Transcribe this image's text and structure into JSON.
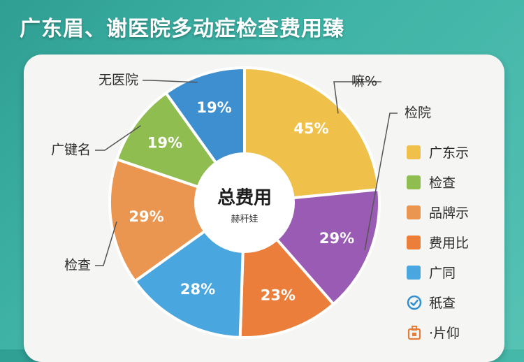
{
  "title": "广东眉、谢医院多动症检查费用臻",
  "chart_data": {
    "type": "pie",
    "slices": [
      {
        "value": 45,
        "label": "45%",
        "color": "#efc04a",
        "callout": "嘛%"
      },
      {
        "value": 29,
        "label": "29%",
        "color": "#9a5bb4",
        "callout": "检院"
      },
      {
        "value": 23,
        "label": "23%",
        "color": "#ea7e3a",
        "callout": ""
      },
      {
        "value": 28,
        "label": "28%",
        "color": "#4aa6de",
        "callout": ""
      },
      {
        "value": 29,
        "label": "29%",
        "color": "#eb9650",
        "callout": "检查"
      },
      {
        "value": 19,
        "label": "19%",
        "color": "#8fbd50",
        "callout": "广键名"
      },
      {
        "value": 19,
        "label": "19%",
        "color": "#3e8fd0",
        "callout": "无医院"
      }
    ],
    "center_title": "总费用",
    "center_subtitle": "赫秆娃"
  },
  "legend": [
    {
      "label": "广东示",
      "color": "#efc04a"
    },
    {
      "label": "检查",
      "color": "#8fbd50"
    },
    {
      "label": "品牌示",
      "color": "#eb9650"
    },
    {
      "label": "费用比",
      "color": "#ea7e3a"
    },
    {
      "label": "广同",
      "color": "#4aa6de"
    },
    {
      "label": "秖查",
      "icon": "check-circle-icon",
      "color": "#2f8fd0"
    },
    {
      "label": "·片仰",
      "icon": "clinic-icon",
      "color": "#e67e3a"
    }
  ]
}
